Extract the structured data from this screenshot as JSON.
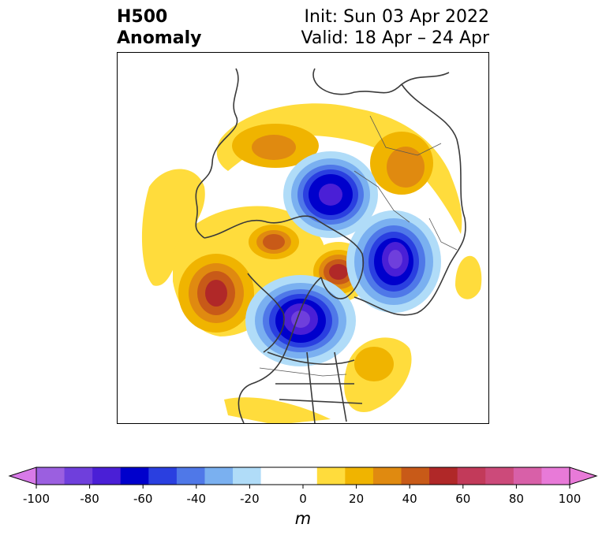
{
  "title": {
    "left_line1": "H500",
    "left_line2": "Anomaly",
    "right_line1": "Init: Sun 03 Apr 2022",
    "right_line2": "Valid: 18 Apr – 24 Apr"
  },
  "map": {
    "projection": "north-polar-stereographic",
    "variable": "500 hPa geopotential height anomaly",
    "anomaly_features": [
      {
        "sign": "positive",
        "region": "northern Siberia / Arctic Russia",
        "peak_m": 50
      },
      {
        "sign": "positive",
        "region": "Urals / western Russia",
        "peak_m": 50
      },
      {
        "sign": "negative",
        "region": "Arctic Ocean near pole",
        "peak_m": -70
      },
      {
        "sign": "negative",
        "region": "Scandinavia / Barents Sea",
        "peak_m": -80
      },
      {
        "sign": "positive",
        "region": "Alaska / Bering Sea",
        "peak_m": 50
      },
      {
        "sign": "positive",
        "region": "Gulf of Alaska / NE Pacific",
        "peak_m": 60
      },
      {
        "sign": "positive",
        "region": "Greenland",
        "peak_m": 60
      },
      {
        "sign": "negative",
        "region": "Hudson Bay / eastern Canada",
        "peak_m": -80
      },
      {
        "sign": "positive",
        "region": "western North Atlantic",
        "peak_m": 30
      },
      {
        "sign": "positive",
        "region": "eastern North Pacific",
        "peak_m": 20
      },
      {
        "sign": "positive",
        "region": "North Africa / Mediterranean",
        "peak_m": 20
      },
      {
        "sign": "positive",
        "region": "Gulf of Mexico",
        "peak_m": 10
      }
    ]
  },
  "colorbar": {
    "unit": "m",
    "ticks": [
      "-100",
      "-80",
      "-60",
      "-40",
      "-20",
      "0",
      "20",
      "40",
      "60",
      "80",
      "100"
    ],
    "levels": [
      -100,
      -90,
      -80,
      -70,
      -60,
      -50,
      -40,
      -30,
      -20,
      -10,
      10,
      20,
      30,
      40,
      50,
      60,
      70,
      80,
      90,
      100
    ],
    "under_color": "#d87ae8",
    "over_color": "#e87ad8",
    "colors": [
      "#9b5fe0",
      "#6f3fdc",
      "#4a1fd6",
      "#0000cc",
      "#2a3fe0",
      "#4f78e8",
      "#7ab0f0",
      "#b0dcf8",
      "#ffffff",
      "#ffffff",
      "#ffdc3c",
      "#f0b400",
      "#e08a10",
      "#c85a18",
      "#b02828",
      "#c23a5a",
      "#cc4a7a",
      "#d860a8",
      "#e87ad8"
    ]
  }
}
